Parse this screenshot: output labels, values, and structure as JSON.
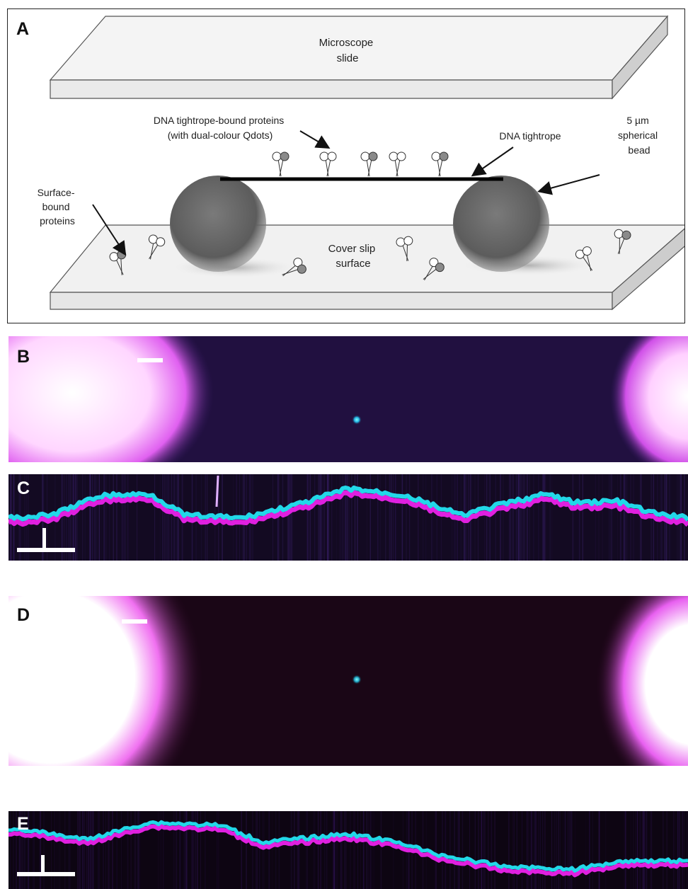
{
  "panels": {
    "a": {
      "label": "A",
      "microscope_slide": "Microscope\nslide",
      "dna_bound_proteins": "DNA tightrope-bound proteins\n(with dual-colour Qdots)",
      "dna_tightrope": "DNA tightrope",
      "bead": "5 µm\nspherical\nbead",
      "surface_bound": "Surface-\nbound\nproteins",
      "cover_slip": "Cover slip\nsurface"
    },
    "b": {
      "label": "B"
    },
    "c": {
      "label": "C"
    },
    "d": {
      "label": "D"
    },
    "e": {
      "label": "E"
    }
  },
  "colors": {
    "cyan": "#22d8e8",
    "magenta": "#e020e0",
    "bead_grey": "#6a6a6a",
    "slide_fill": "#efefef"
  }
}
